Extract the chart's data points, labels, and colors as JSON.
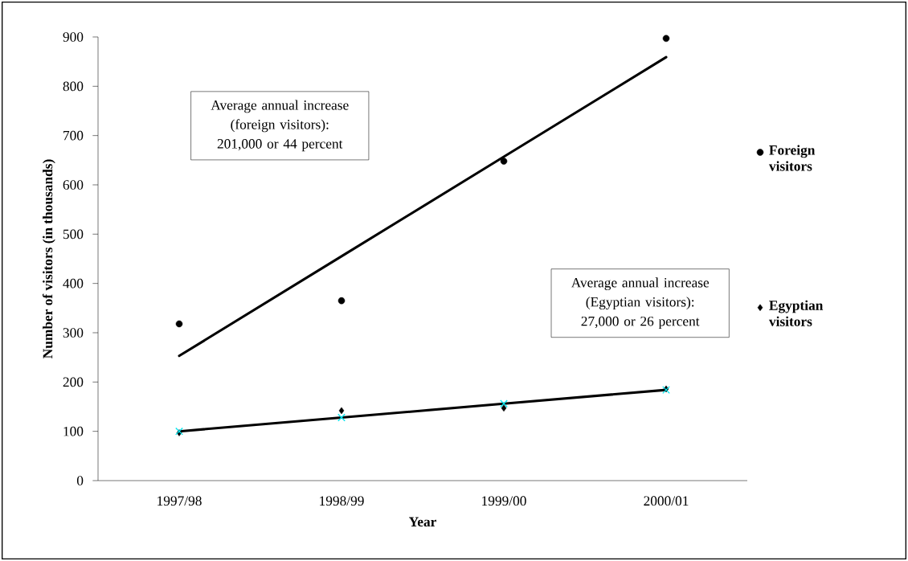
{
  "chart_data": {
    "type": "scatter",
    "xlabel": "Year",
    "ylabel": "Number of visitors (in thousands)",
    "categories": [
      "1997/98",
      "1998/99",
      "1999/00",
      "2000/01"
    ],
    "ylim": [
      0,
      900
    ],
    "yticks": [
      0,
      100,
      200,
      300,
      400,
      500,
      600,
      700,
      800,
      900
    ],
    "legend": "right",
    "series": [
      {
        "name": "Foreign visitors",
        "type": "scatter",
        "marker": "circle",
        "color": "#000000",
        "values": [
          318,
          365,
          648,
          897
        ]
      },
      {
        "name": "Egyptian visitors",
        "type": "scatter",
        "marker": "diamond",
        "color": "#000000",
        "values": [
          97,
          142,
          147,
          186
        ]
      },
      {
        "type": "line",
        "marker": "none",
        "color": "#000000",
        "values": [
          253,
          455,
          657,
          859
        ]
      },
      {
        "type": "line",
        "marker": "none",
        "color": "#000000",
        "values": [
          100,
          128,
          156,
          184
        ]
      },
      {
        "type": "scatter",
        "marker": "cross",
        "color": "#00e5ee",
        "values": [
          100,
          128,
          156,
          184
        ]
      }
    ],
    "annotations": [
      "Average annual increase (foreign visitors): 201,000 or 44 percent",
      "Average annual increase (Egyptian visitors): 27,000 or 26 percent"
    ]
  }
}
